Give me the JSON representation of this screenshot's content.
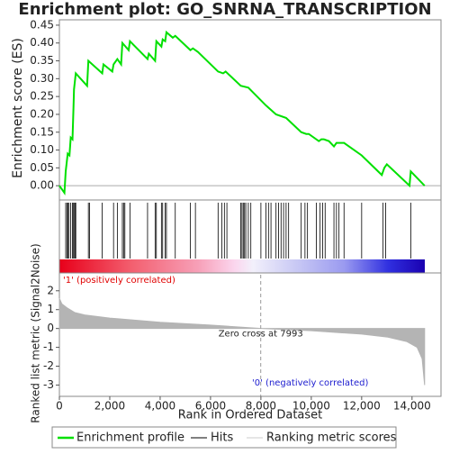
{
  "chart_data": [
    {
      "type": "line",
      "title": "Enrichment plot: GO_SNRNA_TRANSCRIPTION",
      "ylabel": "Enrichment score (ES)",
      "xlim": [
        0,
        15150
      ],
      "ylim": [
        -0.04,
        0.465
      ],
      "yticks": [
        {
          "value": 0,
          "label": "0.00"
        },
        0.05,
        {
          "value": 0.1,
          "label": "0.10"
        },
        0.15,
        {
          "value": 0.2,
          "label": "0.20"
        },
        0.25,
        {
          "value": 0.3,
          "label": "0.30"
        },
        0.35,
        {
          "value": 0.4,
          "label": "0.40"
        },
        0.45
      ],
      "series": [
        {
          "name": "Enrichment profile",
          "color": "#00e000",
          "x": [
            0,
            200,
            250,
            330,
            400,
            450,
            520,
            560,
            580,
            650,
            1100,
            1150,
            1700,
            1750,
            2100,
            2150,
            2300,
            2450,
            2500,
            2750,
            2800,
            3500,
            3550,
            3800,
            3850,
            4050,
            4100,
            4200,
            4250,
            4500,
            4600,
            5200,
            5300,
            5500,
            6300,
            6500,
            6600,
            7200,
            7500,
            8200,
            8600,
            9000,
            9600,
            9800,
            9900,
            10300,
            10400,
            10500,
            10700,
            10900,
            11000,
            11200,
            11300,
            12000,
            12800,
            12900,
            13000,
            13900,
            13950,
            14500
          ],
          "values": [
            0,
            -0.02,
            0.04,
            0.09,
            0.085,
            0.135,
            0.13,
            0.22,
            0.27,
            0.315,
            0.28,
            0.35,
            0.315,
            0.34,
            0.32,
            0.34,
            0.355,
            0.34,
            0.4,
            0.38,
            0.405,
            0.355,
            0.37,
            0.35,
            0.405,
            0.39,
            0.41,
            0.405,
            0.43,
            0.415,
            0.42,
            0.38,
            0.385,
            0.375,
            0.32,
            0.315,
            0.32,
            0.28,
            0.275,
            0.225,
            0.2,
            0.19,
            0.15,
            0.145,
            0.145,
            0.125,
            0.13,
            0.13,
            0.125,
            0.11,
            0.12,
            0.12,
            0.12,
            0.085,
            0.03,
            0.05,
            0.06,
            0.0,
            0.04,
            0.0
          ]
        }
      ]
    },
    {
      "type": "rug",
      "xlim": [
        0,
        15150
      ],
      "series": [
        {
          "name": "Hits",
          "color": "#000000",
          "x": [
            250,
            300,
            330,
            380,
            450,
            520,
            560,
            580,
            620,
            650,
            1150,
            1200,
            1700,
            2150,
            2300,
            2500,
            2550,
            2600,
            2800,
            3500,
            3800,
            3850,
            4050,
            4100,
            4200,
            4250,
            4600,
            5200,
            5400,
            6300,
            6450,
            6550,
            6650,
            7200,
            7250,
            7300,
            7350,
            7400,
            7500,
            7600,
            8000,
            8200,
            8300,
            8400,
            8600,
            8700,
            8800,
            8900,
            9000,
            9100,
            9600,
            9750,
            9850,
            10200,
            10350,
            10450,
            10550,
            10900,
            11000,
            11100,
            11300,
            12000,
            12850,
            12950,
            13950
          ]
        }
      ],
      "pos_label": "'1' (positively correlated)",
      "neg_label": "'0' (negatively correlated)"
    },
    {
      "type": "area",
      "ylabel": "Ranked list metric (Signal2Noise)",
      "xlabel": "Rank in Ordered Dataset",
      "xlim": [
        0,
        15150
      ],
      "ylim": [
        -3.6,
        2.85
      ],
      "xticks": [
        0,
        {
          "value": 2000,
          "label": "2,000"
        },
        {
          "value": 4000,
          "label": "4,000"
        },
        {
          "value": 6000,
          "label": "6,000"
        },
        {
          "value": 8000,
          "label": "8,000"
        },
        {
          "value": 10000,
          "label": "10,000"
        },
        {
          "value": 12000,
          "label": "12,000"
        },
        {
          "value": 14000,
          "label": "14,000"
        }
      ],
      "yticks": [
        2,
        1,
        0,
        -1,
        -2,
        -3
      ],
      "zero_cross": 7993,
      "zero_cross_label": "Zero cross at 7993",
      "series": [
        {
          "name": "Ranking metric scores",
          "color": "#b4b4b4",
          "x": [
            0,
            100,
            300,
            600,
            1000,
            2000,
            4000,
            6000,
            8000,
            10000,
            12000,
            13000,
            13800,
            14200,
            14400,
            14500
          ],
          "values": [
            1.6,
            1.3,
            1.1,
            0.85,
            0.72,
            0.55,
            0.33,
            0.18,
            0,
            -0.12,
            -0.3,
            -0.45,
            -0.7,
            -1.0,
            -1.6,
            -3.0
          ]
        }
      ]
    }
  ]
}
